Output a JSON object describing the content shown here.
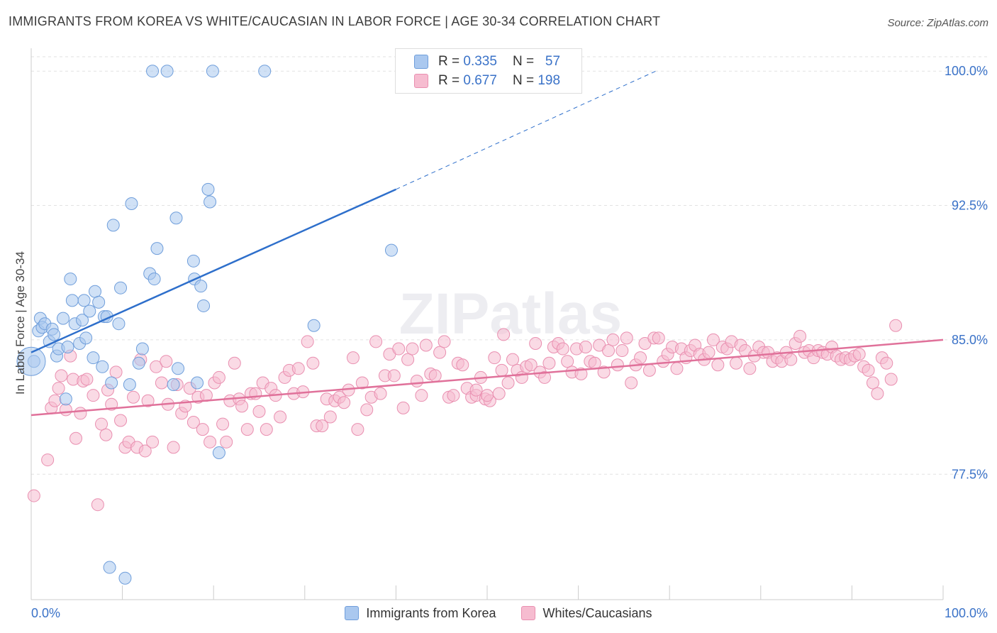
{
  "header": {
    "title": "IMMIGRANTS FROM KOREA VS WHITE/CAUCASIAN IN LABOR FORCE | AGE 30-34 CORRELATION CHART",
    "source": "Source: ZipAtlas.com"
  },
  "colors": {
    "blue_fill": "#aac8ef",
    "blue_stroke": "#6f9edb",
    "blue_line": "#2e6fcb",
    "pink_fill": "#f6bcd0",
    "pink_stroke": "#e98fb0",
    "pink_line": "#e0719a",
    "axis_label": "#3a72c8",
    "grid": "#e2e2e2"
  },
  "legend": {
    "r_label": "R =",
    "n_label": "N =",
    "rows": [
      {
        "series": "Immigrants from Korea",
        "r": "0.335",
        "n": "57"
      },
      {
        "series": "Whites/Caucasians",
        "r": "0.677",
        "n": "198"
      }
    ]
  },
  "bottom_legend": [
    {
      "label": "Immigrants from Korea"
    },
    {
      "label": "Whites/Caucasians"
    }
  ],
  "chart_data": {
    "type": "scatter",
    "title": "IMMIGRANTS FROM KOREA VS WHITE/CAUCASIAN IN LABOR FORCE | AGE 30-34 CORRELATION CHART",
    "xlabel": "",
    "ylabel": "In Labor Force | Age 30-34",
    "xlim": [
      0,
      100
    ],
    "ylim": [
      70.5,
      100.8
    ],
    "x_tick_labels": [
      "0.0%",
      "100.0%"
    ],
    "y_ticks": [
      77.5,
      85.0,
      92.5,
      100.0
    ],
    "y_tick_labels": [
      "77.5%",
      "85.0%",
      "92.5%",
      "100.0%"
    ],
    "grid": true,
    "watermark": "ZIPatlas",
    "series": [
      {
        "name": "Immigrants from Korea",
        "r": 0.335,
        "n": 57,
        "trend": {
          "x": [
            0,
            40
          ],
          "y": [
            84.3,
            93.4
          ]
        },
        "trend_extrapolated": {
          "x": [
            40,
            68.5
          ],
          "y": [
            93.4,
            100.0
          ]
        },
        "points": [
          [
            0.3,
            83.8
          ],
          [
            0.8,
            85.5
          ],
          [
            1.0,
            86.2
          ],
          [
            1.2,
            85.7
          ],
          [
            1.5,
            85.9
          ],
          [
            2.0,
            84.9
          ],
          [
            2.3,
            85.6
          ],
          [
            2.5,
            85.3
          ],
          [
            2.8,
            84.1
          ],
          [
            3.0,
            84.5
          ],
          [
            3.5,
            86.2
          ],
          [
            3.8,
            81.7
          ],
          [
            4.0,
            84.6
          ],
          [
            4.3,
            88.4
          ],
          [
            4.5,
            87.2
          ],
          [
            4.8,
            85.9
          ],
          [
            5.3,
            84.8
          ],
          [
            5.6,
            86.1
          ],
          [
            5.8,
            87.2
          ],
          [
            6.0,
            85.1
          ],
          [
            6.4,
            86.6
          ],
          [
            6.8,
            84.0
          ],
          [
            7.0,
            87.7
          ],
          [
            7.4,
            87.1
          ],
          [
            7.8,
            83.5
          ],
          [
            8.0,
            86.3
          ],
          [
            8.3,
            86.3
          ],
          [
            8.8,
            82.6
          ],
          [
            9.0,
            91.4
          ],
          [
            9.6,
            85.9
          ],
          [
            9.8,
            87.9
          ],
          [
            10.8,
            82.5
          ],
          [
            11.0,
            92.6
          ],
          [
            11.8,
            83.7
          ],
          [
            12.2,
            84.5
          ],
          [
            13.0,
            88.7
          ],
          [
            13.5,
            88.4
          ],
          [
            13.8,
            90.1
          ],
          [
            13.3,
            100.0
          ],
          [
            14.9,
            100.0
          ],
          [
            15.6,
            82.5
          ],
          [
            15.9,
            91.8
          ],
          [
            16.1,
            83.4
          ],
          [
            17.8,
            89.4
          ],
          [
            17.9,
            88.4
          ],
          [
            18.2,
            82.6
          ],
          [
            18.6,
            88.0
          ],
          [
            18.9,
            86.9
          ],
          [
            19.4,
            93.4
          ],
          [
            19.6,
            92.7
          ],
          [
            19.9,
            100.0
          ],
          [
            20.6,
            78.7
          ],
          [
            25.6,
            100.0
          ],
          [
            31.0,
            85.8
          ],
          [
            39.5,
            90.0
          ],
          [
            8.6,
            72.3
          ],
          [
            10.3,
            71.7
          ]
        ]
      },
      {
        "name": "Whites/Caucasians",
        "r": 0.677,
        "n": 198,
        "trend": {
          "x": [
            0,
            100
          ],
          "y": [
            80.8,
            85.0
          ]
        },
        "points": [
          [
            0.3,
            76.3
          ],
          [
            1.8,
            78.3
          ],
          [
            2.2,
            81.2
          ],
          [
            2.6,
            81.6
          ],
          [
            3.0,
            82.3
          ],
          [
            3.3,
            83.0
          ],
          [
            3.8,
            81.1
          ],
          [
            4.3,
            84.1
          ],
          [
            4.6,
            82.8
          ],
          [
            4.9,
            79.5
          ],
          [
            5.4,
            80.9
          ],
          [
            5.7,
            82.7
          ],
          [
            6.1,
            82.8
          ],
          [
            6.8,
            81.9
          ],
          [
            7.3,
            75.8
          ],
          [
            7.7,
            80.3
          ],
          [
            8.2,
            79.7
          ],
          [
            8.4,
            82.2
          ],
          [
            8.8,
            81.4
          ],
          [
            9.3,
            83.2
          ],
          [
            9.8,
            80.5
          ],
          [
            10.3,
            79.0
          ],
          [
            10.7,
            79.3
          ],
          [
            11.2,
            81.8
          ],
          [
            11.6,
            79.0
          ],
          [
            12.0,
            83.9
          ],
          [
            12.5,
            78.8
          ],
          [
            12.8,
            81.6
          ],
          [
            13.3,
            79.3
          ],
          [
            13.7,
            83.5
          ],
          [
            14.3,
            82.6
          ],
          [
            14.8,
            83.8
          ],
          [
            15.0,
            81.4
          ],
          [
            15.6,
            79.0
          ],
          [
            16.0,
            82.5
          ],
          [
            16.5,
            80.9
          ],
          [
            16.9,
            81.3
          ],
          [
            17.4,
            82.3
          ],
          [
            17.8,
            80.4
          ],
          [
            18.3,
            81.8
          ],
          [
            18.8,
            80.0
          ],
          [
            19.2,
            81.9
          ],
          [
            19.6,
            79.3
          ],
          [
            20.1,
            82.6
          ],
          [
            20.6,
            82.9
          ],
          [
            21.0,
            80.3
          ],
          [
            21.4,
            79.3
          ],
          [
            21.8,
            81.6
          ],
          [
            22.3,
            83.7
          ],
          [
            22.8,
            81.7
          ],
          [
            23.1,
            81.3
          ],
          [
            23.7,
            80.0
          ],
          [
            24.1,
            82.0
          ],
          [
            24.6,
            82.0
          ],
          [
            25.0,
            81.0
          ],
          [
            25.4,
            82.6
          ],
          [
            25.8,
            80.0
          ],
          [
            26.3,
            82.3
          ],
          [
            26.8,
            81.9
          ],
          [
            27.3,
            80.7
          ],
          [
            27.8,
            82.9
          ],
          [
            28.3,
            83.3
          ],
          [
            28.8,
            82.0
          ],
          [
            29.3,
            83.4
          ],
          [
            29.8,
            82.1
          ],
          [
            30.3,
            84.9
          ],
          [
            30.9,
            83.7
          ],
          [
            31.3,
            80.2
          ],
          [
            31.9,
            80.2
          ],
          [
            32.4,
            81.7
          ],
          [
            32.8,
            80.7
          ],
          [
            33.3,
            81.6
          ],
          [
            33.8,
            81.8
          ],
          [
            34.3,
            81.5
          ],
          [
            34.8,
            82.2
          ],
          [
            35.3,
            84.0
          ],
          [
            35.8,
            80.0
          ],
          [
            36.3,
            82.6
          ],
          [
            36.8,
            81.1
          ],
          [
            37.3,
            81.8
          ],
          [
            37.8,
            84.9
          ],
          [
            38.3,
            82.0
          ],
          [
            38.8,
            83.0
          ],
          [
            39.3,
            84.2
          ],
          [
            39.8,
            83.0
          ],
          [
            40.3,
            84.5
          ],
          [
            40.8,
            81.2
          ],
          [
            41.3,
            83.9
          ],
          [
            41.8,
            84.5
          ],
          [
            42.3,
            82.7
          ],
          [
            42.8,
            81.9
          ],
          [
            43.3,
            84.7
          ],
          [
            43.8,
            83.1
          ],
          [
            44.3,
            83.0
          ],
          [
            44.8,
            84.3
          ],
          [
            45.3,
            84.9
          ],
          [
            45.8,
            81.8
          ],
          [
            46.3,
            81.9
          ],
          [
            46.8,
            83.7
          ],
          [
            47.3,
            83.6
          ],
          [
            47.8,
            82.3
          ],
          [
            48.3,
            81.8
          ],
          [
            48.8,
            81.9
          ],
          [
            49.3,
            82.9
          ],
          [
            49.8,
            81.7
          ],
          [
            50.3,
            81.6
          ],
          [
            50.8,
            84.0
          ],
          [
            51.3,
            82.0
          ],
          [
            51.8,
            85.3
          ],
          [
            52.3,
            82.6
          ],
          [
            52.8,
            83.9
          ],
          [
            53.3,
            83.3
          ],
          [
            53.8,
            82.9
          ],
          [
            54.3,
            83.5
          ],
          [
            54.8,
            83.6
          ],
          [
            55.3,
            84.8
          ],
          [
            55.8,
            83.2
          ],
          [
            56.3,
            82.9
          ],
          [
            56.8,
            83.7
          ],
          [
            57.3,
            84.6
          ],
          [
            57.8,
            84.8
          ],
          [
            58.3,
            84.5
          ],
          [
            58.8,
            83.8
          ],
          [
            59.3,
            83.2
          ],
          [
            59.8,
            84.5
          ],
          [
            60.3,
            83.1
          ],
          [
            60.8,
            84.6
          ],
          [
            61.3,
            83.8
          ],
          [
            61.8,
            83.7
          ],
          [
            62.3,
            84.7
          ],
          [
            62.8,
            83.2
          ],
          [
            63.3,
            84.4
          ],
          [
            63.8,
            85.0
          ],
          [
            64.3,
            83.6
          ],
          [
            64.8,
            84.4
          ],
          [
            65.3,
            85.1
          ],
          [
            65.8,
            82.6
          ],
          [
            66.3,
            83.6
          ],
          [
            66.8,
            84.0
          ],
          [
            67.3,
            84.8
          ],
          [
            67.8,
            83.3
          ],
          [
            68.3,
            85.1
          ],
          [
            68.8,
            85.1
          ],
          [
            69.3,
            83.8
          ],
          [
            69.8,
            84.2
          ],
          [
            70.3,
            84.6
          ],
          [
            70.8,
            83.4
          ],
          [
            71.3,
            84.5
          ],
          [
            71.8,
            84.0
          ],
          [
            72.3,
            84.4
          ],
          [
            72.8,
            84.7
          ],
          [
            73.3,
            84.2
          ],
          [
            73.8,
            83.9
          ],
          [
            74.3,
            84.3
          ],
          [
            74.8,
            85.0
          ],
          [
            75.3,
            83.6
          ],
          [
            75.8,
            84.6
          ],
          [
            76.3,
            84.5
          ],
          [
            76.8,
            84.9
          ],
          [
            77.3,
            83.7
          ],
          [
            77.8,
            84.7
          ],
          [
            78.3,
            84.4
          ],
          [
            78.8,
            83.4
          ],
          [
            79.3,
            84.1
          ],
          [
            79.8,
            84.6
          ],
          [
            80.3,
            84.3
          ],
          [
            80.8,
            84.3
          ],
          [
            81.3,
            83.8
          ],
          [
            81.8,
            84.0
          ],
          [
            82.3,
            83.8
          ],
          [
            82.8,
            84.3
          ],
          [
            83.3,
            83.9
          ],
          [
            83.8,
            84.8
          ],
          [
            84.3,
            85.2
          ],
          [
            84.8,
            84.3
          ],
          [
            85.3,
            84.4
          ],
          [
            85.8,
            84.0
          ],
          [
            86.3,
            84.4
          ],
          [
            86.8,
            84.3
          ],
          [
            87.3,
            84.2
          ],
          [
            87.8,
            84.6
          ],
          [
            88.3,
            84.1
          ],
          [
            88.8,
            83.9
          ],
          [
            89.3,
            84.0
          ],
          [
            89.8,
            83.9
          ],
          [
            90.3,
            84.1
          ],
          [
            90.8,
            84.2
          ],
          [
            91.3,
            83.5
          ],
          [
            91.8,
            83.3
          ],
          [
            92.3,
            82.6
          ],
          [
            92.8,
            82.0
          ],
          [
            93.3,
            84.0
          ],
          [
            93.8,
            83.7
          ],
          [
            94.3,
            82.8
          ],
          [
            94.8,
            85.8
          ],
          [
            48.8,
            82.2
          ],
          [
            50.0,
            81.9
          ],
          [
            51.6,
            83.3
          ]
        ]
      }
    ]
  }
}
